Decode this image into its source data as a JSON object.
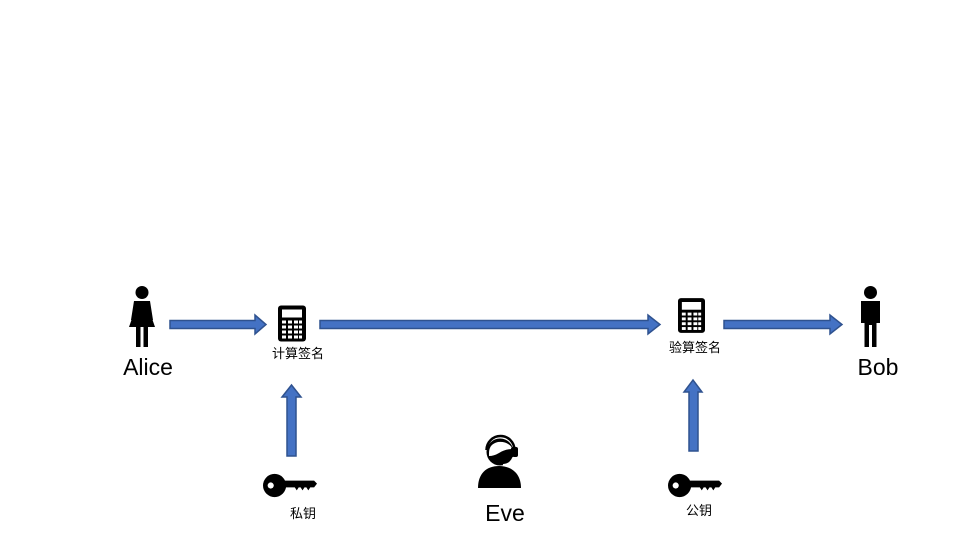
{
  "diagram": {
    "nodes": {
      "alice": {
        "label": "Alice",
        "icon": "woman-icon"
      },
      "compute_signature": {
        "label": "计算签名",
        "icon": "calculator-icon"
      },
      "verify_signature": {
        "label": "验算签名",
        "icon": "calculator-icon"
      },
      "bob": {
        "label": "Bob",
        "icon": "man-icon"
      },
      "private_key": {
        "label": "私钥",
        "icon": "key-icon"
      },
      "public_key": {
        "label": "公钥",
        "icon": "key-icon"
      },
      "eve": {
        "label": "Eve",
        "icon": "headset-person-icon"
      }
    },
    "edges": [
      {
        "from": "alice",
        "to": "compute_signature"
      },
      {
        "from": "compute_signature",
        "to": "verify_signature"
      },
      {
        "from": "verify_signature",
        "to": "bob"
      },
      {
        "from": "private_key",
        "to": "compute_signature"
      },
      {
        "from": "public_key",
        "to": "verify_signature"
      }
    ],
    "colors": {
      "arrow_fill": "#4472C4",
      "arrow_stroke": "#2F528F",
      "icon": "#000000",
      "background": "#FFFFFF"
    }
  }
}
